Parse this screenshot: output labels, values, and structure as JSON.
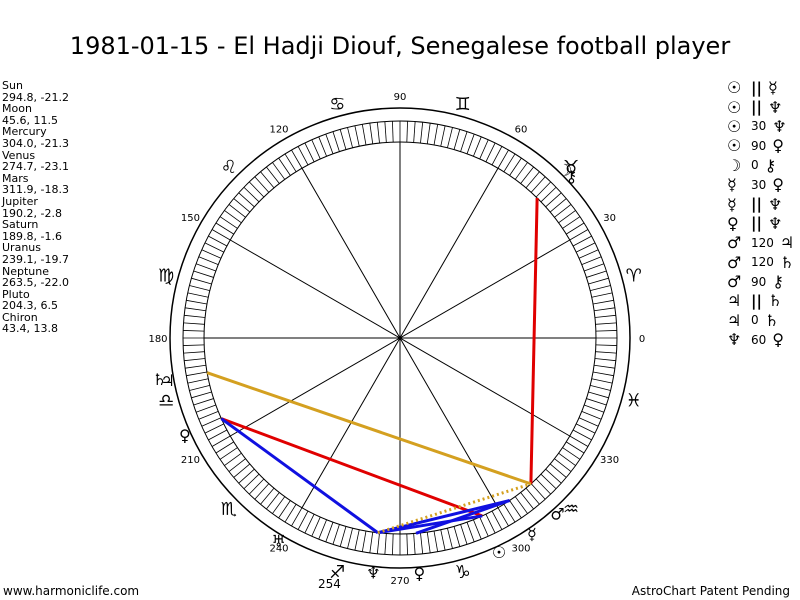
{
  "title": "1981-01-15 - El Hadji Diouf, Senegalese football player",
  "planets": [
    {
      "name": "Sun",
      "coords": "294.8, -21.2"
    },
    {
      "name": "Moon",
      "coords": "45.6, 11.5"
    },
    {
      "name": "Mercury",
      "coords": "304.0, -21.3"
    },
    {
      "name": "Venus",
      "coords": "274.7, -23.1"
    },
    {
      "name": "Mars",
      "coords": "311.9, -18.3"
    },
    {
      "name": "Jupiter",
      "coords": "190.2, -2.8"
    },
    {
      "name": "Saturn",
      "coords": "189.8, -1.6"
    },
    {
      "name": "Uranus",
      "coords": "239.1, -19.7"
    },
    {
      "name": "Neptune",
      "coords": "263.5, -22.0"
    },
    {
      "name": "Pluto",
      "coords": "204.3, 6.5"
    },
    {
      "name": "Chiron",
      "coords": "43.4, 13.8"
    }
  ],
  "aspects": [
    {
      "p1": "☉",
      "aspect": "||",
      "p2": "☿"
    },
    {
      "p1": "☉",
      "aspect": "||",
      "p2": "♆"
    },
    {
      "p1": "☉",
      "aspect": "30",
      "p2": "♆"
    },
    {
      "p1": "☉",
      "aspect": "90",
      "p2": "♀"
    },
    {
      "p1": "☽",
      "aspect": "0",
      "p2": "⚷"
    },
    {
      "p1": "☿",
      "aspect": "30",
      "p2": "♀"
    },
    {
      "p1": "☿",
      "aspect": "||",
      "p2": "♆"
    },
    {
      "p1": "♀",
      "aspect": "||",
      "p2": "♆"
    },
    {
      "p1": "♂",
      "aspect": "120",
      "p2": "♃"
    },
    {
      "p1": "♂",
      "aspect": "120",
      "p2": "♄"
    },
    {
      "p1": "♂",
      "aspect": "90",
      "p2": "⚷"
    },
    {
      "p1": "♃",
      "aspect": "||",
      "p2": "♄"
    },
    {
      "p1": "♃",
      "aspect": "0",
      "p2": "♄"
    },
    {
      "p1": "♆",
      "aspect": "60",
      "p2": "♀"
    }
  ],
  "wheel": {
    "degree_labels": [
      {
        "text": "0",
        "deg": 0
      },
      {
        "text": "30",
        "deg": 30
      },
      {
        "text": "60",
        "deg": 60
      },
      {
        "text": "90",
        "deg": 90
      },
      {
        "text": "120",
        "deg": 120
      },
      {
        "text": "150",
        "deg": 150
      },
      {
        "text": "180",
        "deg": 180
      },
      {
        "text": "210",
        "deg": 210
      },
      {
        "text": "240",
        "deg": 240
      },
      {
        "text": "270",
        "deg": 270
      },
      {
        "text": "300",
        "deg": 300
      },
      {
        "text": "330",
        "deg": 330
      }
    ],
    "zodiac_signs": [
      {
        "glyph": "♈",
        "name": "aries",
        "deg": 15
      },
      {
        "glyph": "♉",
        "name": "taurus",
        "deg": 45
      },
      {
        "glyph": "♊",
        "name": "gemini",
        "deg": 75
      },
      {
        "glyph": "♋",
        "name": "cancer",
        "deg": 105
      },
      {
        "glyph": "♌",
        "name": "leo",
        "deg": 135
      },
      {
        "glyph": "♍",
        "name": "virgo",
        "deg": 165
      },
      {
        "glyph": "♎",
        "name": "libra",
        "deg": 195
      },
      {
        "glyph": "♏",
        "name": "scorpio",
        "deg": 225
      },
      {
        "glyph": "♐",
        "name": "sagittarius",
        "deg": 255
      },
      {
        "glyph": "♑",
        "name": "capricorn",
        "deg": 285
      },
      {
        "glyph": "♒",
        "name": "aquarius",
        "deg": 315
      },
      {
        "glyph": "♓",
        "name": "pisces",
        "deg": 345
      }
    ],
    "planet_marks": [
      {
        "glyph": "☉",
        "name": "sun",
        "deg": 294.8,
        "color": "#000000"
      },
      {
        "glyph": "☽",
        "name": "moon",
        "deg": 45.6,
        "color": "#000000"
      },
      {
        "glyph": "☿",
        "name": "mercury",
        "deg": 304.0,
        "color": "#000000"
      },
      {
        "glyph": "♀",
        "name": "venus",
        "deg": 274.7,
        "color": "#000000"
      },
      {
        "glyph": "♂",
        "name": "mars",
        "deg": 311.9,
        "color": "#000000"
      },
      {
        "glyph": "♃",
        "name": "jupiter",
        "deg": 190.2,
        "color": "#000000"
      },
      {
        "glyph": "♄",
        "name": "saturn",
        "deg": 189.8,
        "color": "#000000"
      },
      {
        "glyph": "♅",
        "name": "uranus",
        "deg": 239.1,
        "color": "#000000"
      },
      {
        "glyph": "♆",
        "name": "neptune",
        "deg": 263.5,
        "color": "#000000"
      },
      {
        "glyph": "♀",
        "name": "pluto",
        "deg": 204.3,
        "color": "#000000"
      },
      {
        "glyph": "⚷",
        "name": "chiron",
        "deg": 43.4,
        "color": "#000000"
      }
    ],
    "extra_labels": [
      {
        "text": "254",
        "deg": 254
      }
    ],
    "aspect_lines": [
      {
        "from": 45.6,
        "to": 311.9,
        "color": "#e00000",
        "style": "solid"
      },
      {
        "from": 190.2,
        "to": 311.9,
        "color": "#d4a020",
        "style": "solid"
      },
      {
        "from": 204.3,
        "to": 294.8,
        "color": "#e00000",
        "style": "solid"
      },
      {
        "from": 204.3,
        "to": 263.5,
        "color": "#1010e0",
        "style": "solid"
      },
      {
        "from": 263.5,
        "to": 304.0,
        "color": "#1010e0",
        "style": "solid"
      },
      {
        "from": 274.7,
        "to": 304.0,
        "color": "#1010e0",
        "style": "solid"
      },
      {
        "from": 294.8,
        "to": 263.5,
        "color": "#1010e0",
        "style": "solid"
      },
      {
        "from": 263.5,
        "to": 311.9,
        "color": "#d4a020",
        "style": "dotted"
      }
    ]
  },
  "footer": {
    "left": "www.harmoniclife.com",
    "right": "AstroChart Patent Pending"
  }
}
